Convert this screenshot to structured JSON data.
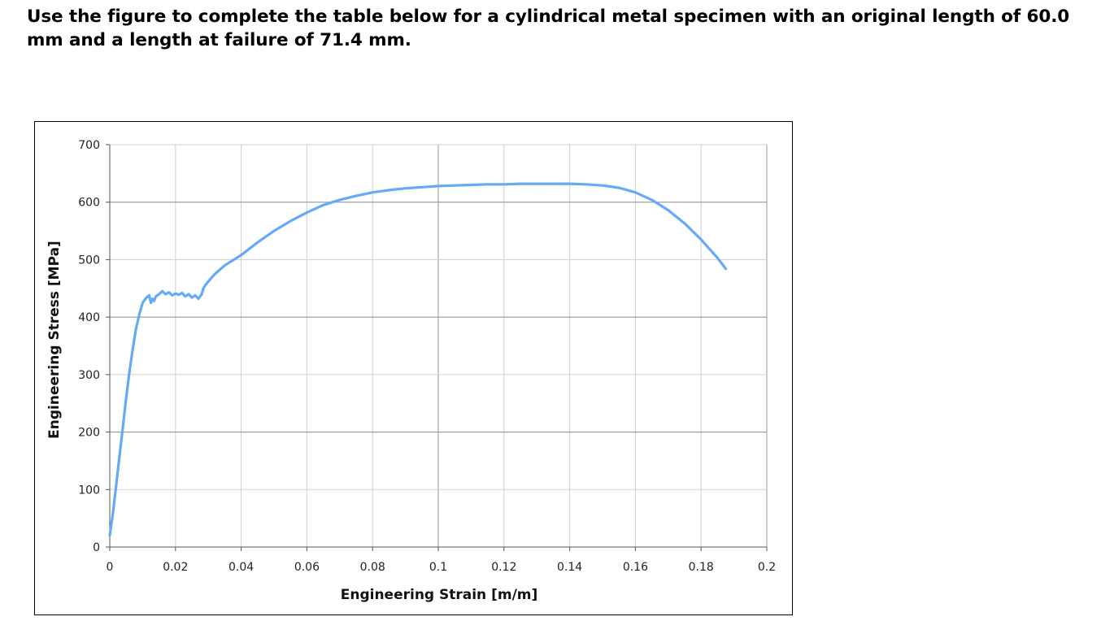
{
  "problem": {
    "text": "Use the figure to complete the table below for a cylindrical metal specimen with an original length of 60.0 mm and a length at failure of 71.4 mm."
  },
  "chart_data": {
    "type": "line",
    "title": "",
    "xlabel": "Engineering Strain [m/m]",
    "ylabel": "Engineering Stress [MPa]",
    "xlim": [
      0,
      0.2
    ],
    "ylim": [
      0,
      700
    ],
    "x_ticks": [
      0,
      0.02,
      0.04,
      0.06,
      0.08,
      0.1,
      0.12,
      0.14,
      0.16,
      0.18,
      0.2
    ],
    "x_tick_labels": [
      "0",
      "0.02",
      "0.04",
      "0.06",
      "0.08",
      "0.1",
      "0.12",
      "0.14",
      "0.16",
      "0.18",
      "0.2"
    ],
    "y_ticks": [
      0,
      100,
      200,
      300,
      400,
      500,
      600,
      700
    ],
    "y_tick_labels": [
      "0",
      "100",
      "200",
      "300",
      "400",
      "500",
      "600",
      "700"
    ],
    "grid": true,
    "legend": "none",
    "line_color": "#66aaf5",
    "series": [
      {
        "x": [
          0,
          0.001,
          0.002,
          0.003,
          0.004,
          0.005,
          0.006,
          0.007,
          0.008,
          0.009,
          0.01,
          0.011,
          0.012,
          0.0125,
          0.013,
          0.0135,
          0.014,
          0.015,
          0.016,
          0.017,
          0.018,
          0.019,
          0.02,
          0.021,
          0.022,
          0.023,
          0.024,
          0.025,
          0.026,
          0.027,
          0.0275,
          0.028,
          0.0285,
          0.029,
          0.03,
          0.032,
          0.035,
          0.04,
          0.045,
          0.05,
          0.055,
          0.06,
          0.065,
          0.07,
          0.075,
          0.08,
          0.085,
          0.09,
          0.095,
          0.1,
          0.105,
          0.11,
          0.115,
          0.12,
          0.125,
          0.13,
          0.135,
          0.14,
          0.145,
          0.15,
          0.155,
          0.16,
          0.165,
          0.17,
          0.175,
          0.18,
          0.185,
          0.1875
        ],
        "y": [
          20,
          60,
          110,
          160,
          210,
          260,
          305,
          345,
          380,
          405,
          425,
          433,
          438,
          425,
          432,
          428,
          436,
          440,
          445,
          440,
          443,
          438,
          441,
          439,
          442,
          436,
          440,
          434,
          438,
          432,
          436,
          440,
          450,
          455,
          462,
          475,
          490,
          508,
          530,
          550,
          567,
          582,
          595,
          604,
          611,
          617,
          621,
          624,
          626,
          628,
          629,
          630,
          631,
          631,
          632,
          632,
          632,
          632,
          631,
          629,
          625,
          617,
          604,
          586,
          563,
          535,
          503,
          484
        ]
      }
    ]
  }
}
